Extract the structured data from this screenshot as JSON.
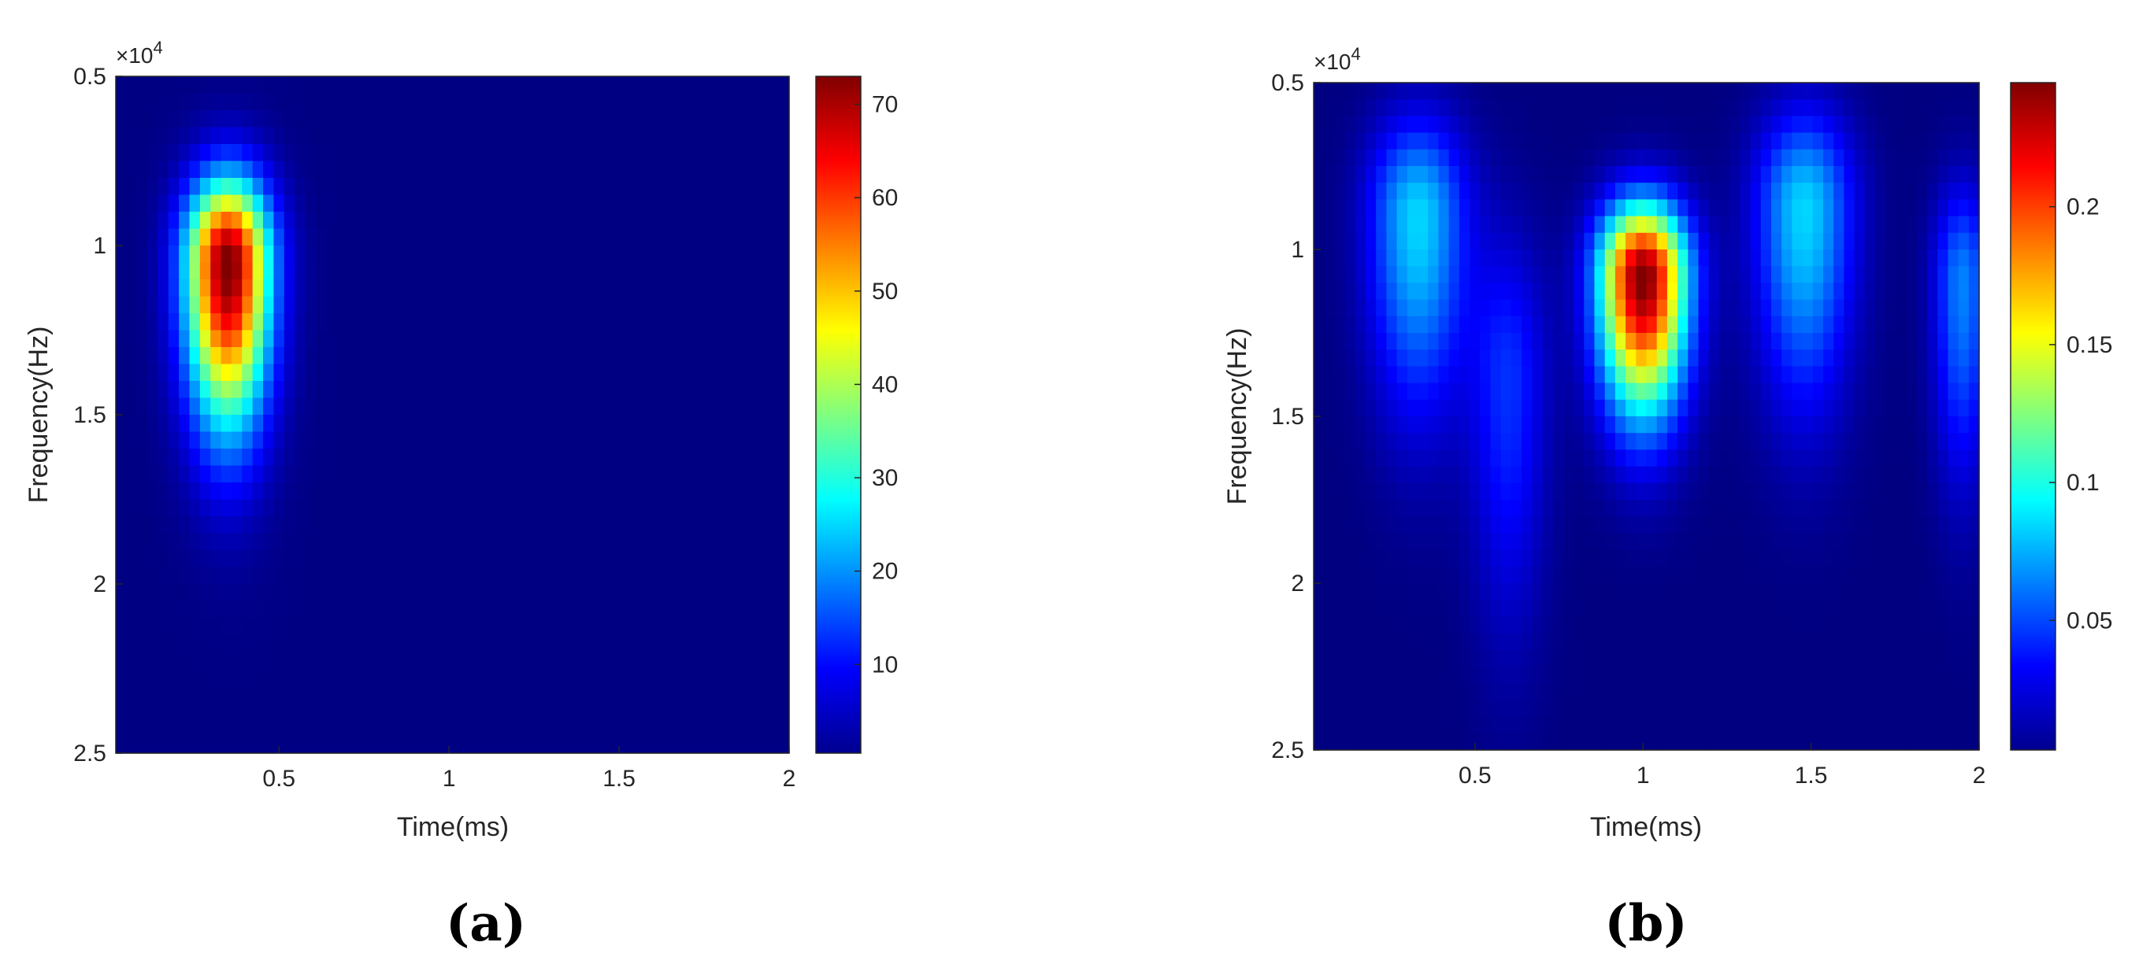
{
  "chart_data": [
    {
      "type": "heatmap",
      "panel_label": "(a)",
      "xlabel": "Time(ms)",
      "ylabel": "Frequency(Hz)",
      "y_exponent": "×10",
      "y_exponent_power": "4",
      "xlim": [
        0.02,
        2
      ],
      "ylim": [
        0.5,
        2.5
      ],
      "y_reversed": true,
      "x_ticks": [
        "0.5",
        "1",
        "1.5",
        "2"
      ],
      "x_tick_values": [
        0.5,
        1,
        1.5,
        2
      ],
      "y_ticks": [
        "0.5",
        "1",
        "1.5",
        "2",
        "2.5"
      ],
      "y_tick_values": [
        0.5,
        1,
        1.5,
        2,
        2.5
      ],
      "colormap": "jet",
      "colorbar_range": [
        0.5,
        73
      ],
      "colorbar_ticks": [
        "10",
        "20",
        "30",
        "40",
        "50",
        "60",
        "70"
      ],
      "colorbar_tick_values": [
        10,
        20,
        30,
        40,
        50,
        60,
        70
      ],
      "blobs": [
        {
          "time_ms": 0.35,
          "freq_1e4hz": 1.05,
          "peak": 72,
          "sigma_time_ms": 0.085,
          "sigma_freq_up_1e4hz": 0.17,
          "sigma_freq_down_1e4hz": 0.33
        }
      ]
    },
    {
      "type": "heatmap",
      "panel_label": "(b)",
      "xlabel": "Time(ms)",
      "ylabel": "Frequency(Hz)",
      "y_exponent": "×10",
      "y_exponent_power": "4",
      "xlim": [
        0.02,
        2
      ],
      "ylim": [
        0.5,
        2.5
      ],
      "y_reversed": true,
      "x_ticks": [
        "0.5",
        "1",
        "1.5",
        "2"
      ],
      "x_tick_values": [
        0.5,
        1,
        1.5,
        2
      ],
      "y_ticks": [
        "0.5",
        "1",
        "1.5",
        "2",
        "2.5"
      ],
      "y_tick_values": [
        0.5,
        1,
        1.5,
        2,
        2.5
      ],
      "colormap": "jet",
      "colorbar_range": [
        0.003,
        0.245
      ],
      "colorbar_ticks": [
        "0.05",
        "0.1",
        "0.15",
        "0.2"
      ],
      "colorbar_tick_values": [
        0.05,
        0.1,
        0.15,
        0.2
      ],
      "blobs": [
        {
          "time_ms": 1.0,
          "freq_1e4hz": 1.08,
          "peak": 0.24,
          "sigma_time_ms": 0.09,
          "sigma_freq_up_1e4hz": 0.15,
          "sigma_freq_down_1e4hz": 0.28
        },
        {
          "time_ms": 0.33,
          "freq_1e4hz": 0.9,
          "peak": 0.08,
          "sigma_time_ms": 0.1,
          "sigma_freq_up_1e4hz": 0.2,
          "sigma_freq_down_1e4hz": 0.4
        },
        {
          "time_ms": 1.48,
          "freq_1e4hz": 0.88,
          "peak": 0.08,
          "sigma_time_ms": 0.1,
          "sigma_freq_up_1e4hz": 0.2,
          "sigma_freq_down_1e4hz": 0.4
        },
        {
          "time_ms": 1.95,
          "freq_1e4hz": 1.1,
          "peak": 0.06,
          "sigma_time_ms": 0.06,
          "sigma_freq_up_1e4hz": 0.2,
          "sigma_freq_down_1e4hz": 0.4
        },
        {
          "time_ms": 0.6,
          "freq_1e4hz": 1.4,
          "peak": 0.04,
          "sigma_time_ms": 0.08,
          "sigma_freq_up_1e4hz": 0.3,
          "sigma_freq_down_1e4hz": 0.5
        }
      ]
    }
  ]
}
